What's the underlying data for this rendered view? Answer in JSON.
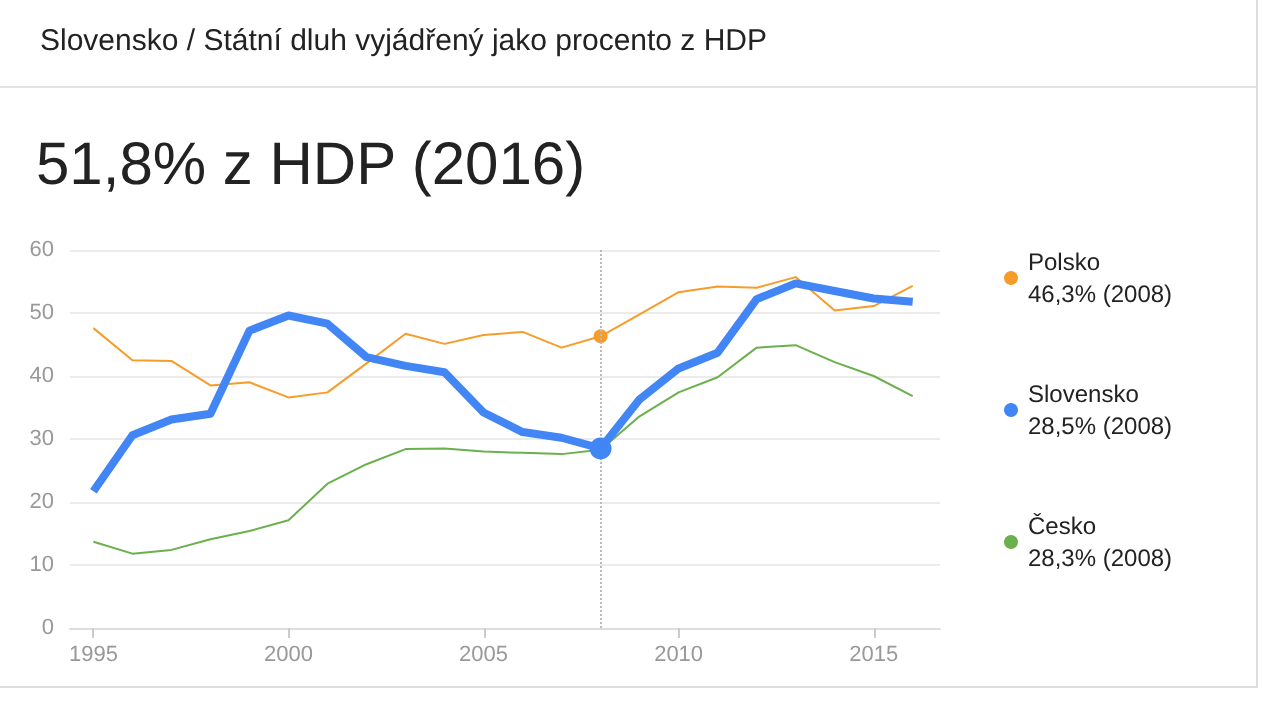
{
  "chart_data": {
    "type": "line",
    "subtitle": "Slovensko / Státní dluh vyjádřený jako procento z HDP",
    "title": "51,8% z HDP (2016)",
    "x": [
      1995,
      1996,
      1997,
      1998,
      1999,
      2000,
      2001,
      2002,
      2003,
      2004,
      2005,
      2006,
      2007,
      2008,
      2009,
      2010,
      2011,
      2012,
      2013,
      2014,
      2015,
      2016
    ],
    "series": [
      {
        "name": "Polsko",
        "color": "#f79c2a",
        "values": [
          47.6,
          42.5,
          42.4,
          38.5,
          39,
          36.6,
          37.4,
          42,
          46.7,
          45.1,
          46.5,
          47,
          44.5,
          46.3,
          49.8,
          53.3,
          54.2,
          54,
          55.7,
          50.4,
          51.1,
          54.3
        ]
      },
      {
        "name": "Slovensko",
        "color": "#4285f4",
        "values": [
          21.7,
          30.6,
          33.1,
          34,
          47.2,
          49.6,
          48.3,
          43,
          41.6,
          40.6,
          34.2,
          31.1,
          30.2,
          28.5,
          36.3,
          41.2,
          43.7,
          52.2,
          54.7,
          53.5,
          52.3,
          51.8
        ]
      },
      {
        "name": "Česko",
        "color": "#6ab04c",
        "values": [
          13.7,
          11.8,
          12.4,
          14.1,
          15.4,
          17.1,
          22.9,
          26,
          28.4,
          28.5,
          28,
          27.8,
          27.6,
          28.3,
          33.6,
          37.4,
          39.8,
          44.5,
          44.9,
          42.2,
          40,
          36.8
        ]
      }
    ],
    "annotations": [
      "46,3% (2008)",
      "28,5% (2008)",
      "28,3% (2008)"
    ],
    "ref_lines": [
      {
        "axis": "x",
        "value": 2008,
        "label": null,
        "color": "#bbbbbb",
        "line_style": "dotted"
      }
    ],
    "xlim": [
      1994.4,
      2016.7
    ],
    "xticks": [
      1995,
      2000,
      2005,
      2010,
      2015
    ],
    "ylim": [
      0,
      60
    ],
    "yticks": [
      0,
      10,
      20,
      30,
      40,
      50,
      60
    ],
    "grid": "y",
    "legend": "right",
    "marker": "none",
    "line_style": "solid"
  }
}
